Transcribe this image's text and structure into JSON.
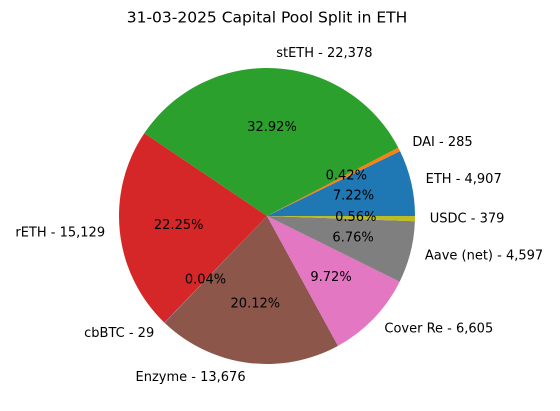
{
  "chart_data": {
    "type": "pie",
    "title": "31-03-2025 Capital Pool Split in ETH",
    "categories": [
      "ETH - 4,907",
      "DAI - 285",
      "stETH - 22,378",
      "rETH - 15,129",
      "cbBTC - 29",
      "Enzyme - 13,676",
      "Cover Re - 6,605",
      "Aave (net) - 4,597",
      "USDC - 379"
    ],
    "values": [
      7.22,
      0.42,
      32.92,
      22.25,
      0.04,
      20.12,
      9.72,
      6.76,
      0.56
    ],
    "value_labels": [
      "7.22%",
      "0.42%",
      "32.92%",
      "22.25%",
      "0.04%",
      "20.12%",
      "9.72%",
      "6.76%",
      "0.56%"
    ],
    "colors": [
      "#1f77b4",
      "#ff7f0e",
      "#2ca02c",
      "#d62728",
      "#9467bd",
      "#8c564b",
      "#e377c2",
      "#7f7f7f",
      "#bcbd22"
    ]
  }
}
